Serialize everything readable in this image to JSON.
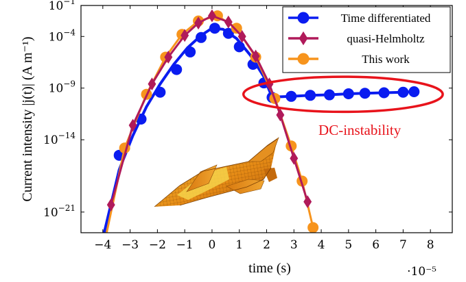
{
  "chart_data": {
    "type": "line",
    "xlabel": "time (s)",
    "ylabel": "Current intensity |j(t)| (A m⁻¹)",
    "x_multiplier": "·10⁻⁵",
    "xlim": [
      -4.8,
      8.8
    ],
    "ylim_log10": [
      -23,
      -1
    ],
    "y_scale": "log",
    "x_ticks": [
      {
        "value": -4,
        "label": "−4"
      },
      {
        "value": -3,
        "label": "−3"
      },
      {
        "value": -2,
        "label": "−2"
      },
      {
        "value": -1,
        "label": "−1"
      },
      {
        "value": 0,
        "label": "0"
      },
      {
        "value": 1,
        "label": "1"
      },
      {
        "value": 2,
        "label": "2"
      },
      {
        "value": 3,
        "label": "3"
      },
      {
        "value": 4,
        "label": "4"
      },
      {
        "value": 5,
        "label": "5"
      },
      {
        "value": 6,
        "label": "6"
      },
      {
        "value": 7,
        "label": "7"
      },
      {
        "value": 8,
        "label": "8"
      }
    ],
    "y_ticks": [
      {
        "exp": -1,
        "base": "10",
        "sup": "−1"
      },
      {
        "exp": -4,
        "base": "10",
        "sup": "−4"
      },
      {
        "exp": -9,
        "base": "10",
        "sup": "−9"
      },
      {
        "exp": -14,
        "base": "10",
        "sup": "−14"
      },
      {
        "exp": -21,
        "base": "10",
        "sup": "−21"
      }
    ],
    "legend_position": "top-right",
    "series": [
      {
        "name": "Time differentiated",
        "color": "#0a1cf0",
        "marker": "circle",
        "x": [
          -3.4,
          -2.6,
          -1.9,
          -1.3,
          -0.8,
          -0.4,
          0.1,
          0.6,
          1.0,
          1.5,
          1.9,
          2.2,
          2.9,
          3.6,
          4.3,
          5.0,
          5.6,
          6.3,
          7.0,
          7.4
        ],
        "y_log10": [
          -15.5,
          -12.0,
          -9.4,
          -7.2,
          -5.5,
          -4.1,
          -3.2,
          -3.7,
          -5.0,
          -6.7,
          -8.5,
          -9.9,
          -9.8,
          -9.7,
          -9.65,
          -9.55,
          -9.5,
          -9.45,
          -9.4,
          -9.35
        ],
        "line_x": [
          -3.95,
          -3.4,
          -2.9,
          -2.4,
          -1.9,
          -1.4,
          -0.9,
          -0.4,
          0.0,
          0.4,
          0.9,
          1.4,
          1.9,
          2.2,
          2.4,
          2.9,
          3.6,
          4.3,
          5.0,
          5.6,
          6.3,
          7.0,
          7.4
        ],
        "line_y_log10": [
          -23.0,
          -16.9,
          -13.6,
          -10.8,
          -8.6,
          -6.7,
          -5.1,
          -3.9,
          -3.2,
          -3.3,
          -4.2,
          -5.8,
          -7.9,
          -9.9,
          -9.85,
          -9.8,
          -9.7,
          -9.65,
          -9.55,
          -9.5,
          -9.45,
          -9.4,
          -9.35
        ]
      },
      {
        "name": "quasi-Helmholtz",
        "color": "#b01a5a",
        "marker": "diamond",
        "x": [
          -3.7,
          -2.9,
          -2.2,
          -1.6,
          -1.0,
          -0.5,
          0.0,
          0.6,
          1.1,
          1.6,
          2.1,
          2.5,
          3.0,
          3.5
        ],
        "y_log10": [
          -20.3,
          -12.6,
          -8.6,
          -6.0,
          -3.9,
          -2.7,
          -2.0,
          -2.6,
          -4.0,
          -5.9,
          -8.6,
          -11.6,
          -15.8,
          -20.0
        ]
      },
      {
        "name": "This work",
        "color": "#f7941d",
        "marker": "circle",
        "x": [
          -3.9,
          -3.2,
          -2.4,
          -1.7,
          -1.1,
          -0.5,
          0.2,
          0.9,
          1.6,
          2.3,
          2.9,
          3.3,
          3.7
        ],
        "y_log10": [
          -23.5,
          -14.8,
          -9.6,
          -6.0,
          -3.8,
          -2.5,
          -2.0,
          -3.2,
          -6.0,
          -10.0,
          -14.6,
          -18.0,
          -22.5
        ]
      }
    ],
    "annotations": [
      {
        "text": "DC-instability",
        "color": "#e8131b",
        "x": 4.0,
        "y_log10": -13.0
      },
      {
        "shape": "ellipse",
        "color": "#e8131b",
        "cx": 4.8,
        "cy_log10": -9.6,
        "rx": 3.65,
        "ry_log10": 1.7
      }
    ]
  }
}
